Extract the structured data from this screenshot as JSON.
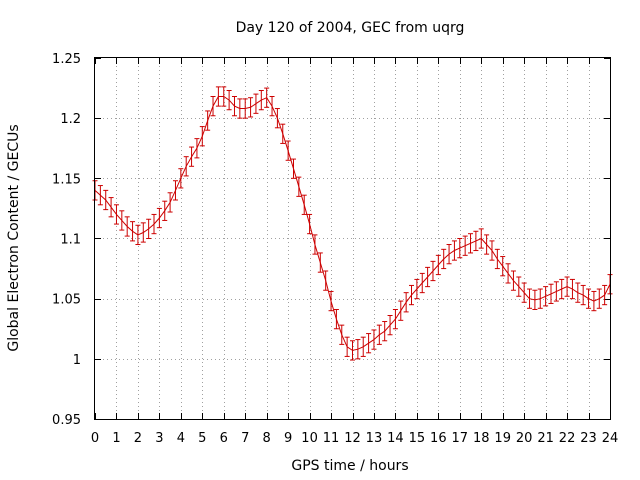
{
  "chart_data": {
    "type": "line",
    "title": "Day 120 of 2004, GEC from uqrg",
    "xlabel": "GPS time / hours",
    "ylabel": "Global Electron Content / GECUs",
    "xlim": [
      0,
      24
    ],
    "ylim": [
      0.95,
      1.25
    ],
    "xticks": [
      "0",
      "1",
      "2",
      "3",
      "4",
      "5",
      "6",
      "7",
      "8",
      "9",
      "10",
      "11",
      "12",
      "13",
      "14",
      "15",
      "16",
      "17",
      "18",
      "19",
      "20",
      "21",
      "22",
      "23",
      "24"
    ],
    "yticks": [
      "0.95",
      "1",
      "1.05",
      "1.1",
      "1.15",
      "1.2",
      "1.25"
    ],
    "grid": true,
    "series_color": "#cc0000",
    "error": 0.008,
    "x": [
      0,
      0.25,
      0.5,
      0.75,
      1,
      1.25,
      1.5,
      1.75,
      2,
      2.25,
      2.5,
      2.75,
      3,
      3.25,
      3.5,
      3.75,
      4,
      4.25,
      4.5,
      4.75,
      5,
      5.25,
      5.5,
      5.75,
      6,
      6.25,
      6.5,
      6.75,
      7,
      7.25,
      7.5,
      7.75,
      8,
      8.25,
      8.5,
      8.75,
      9,
      9.25,
      9.5,
      9.75,
      10,
      10.25,
      10.5,
      10.75,
      11,
      11.25,
      11.5,
      11.75,
      12,
      12.25,
      12.5,
      12.75,
      13,
      13.25,
      13.5,
      13.75,
      14,
      14.25,
      14.5,
      14.75,
      15,
      15.25,
      15.5,
      15.75,
      16,
      16.25,
      16.5,
      16.75,
      17,
      17.25,
      17.5,
      17.75,
      18,
      18.25,
      18.5,
      18.75,
      19,
      19.25,
      19.5,
      19.75,
      20,
      20.25,
      20.5,
      20.75,
      21,
      21.25,
      21.5,
      21.75,
      22,
      22.25,
      22.5,
      22.75,
      23,
      23.25,
      23.5,
      23.75,
      24
    ],
    "y": [
      1.14,
      1.136,
      1.132,
      1.126,
      1.12,
      1.115,
      1.11,
      1.106,
      1.103,
      1.105,
      1.108,
      1.112,
      1.117,
      1.123,
      1.13,
      1.14,
      1.15,
      1.16,
      1.168,
      1.175,
      1.185,
      1.198,
      1.21,
      1.218,
      1.218,
      1.215,
      1.21,
      1.208,
      1.208,
      1.209,
      1.212,
      1.215,
      1.217,
      1.21,
      1.2,
      1.187,
      1.173,
      1.158,
      1.143,
      1.128,
      1.112,
      1.095,
      1.08,
      1.065,
      1.048,
      1.033,
      1.02,
      1.01,
      1.007,
      1.008,
      1.01,
      1.013,
      1.016,
      1.02,
      1.023,
      1.028,
      1.033,
      1.04,
      1.047,
      1.053,
      1.058,
      1.063,
      1.068,
      1.073,
      1.078,
      1.083,
      1.087,
      1.09,
      1.092,
      1.094,
      1.096,
      1.098,
      1.1,
      1.095,
      1.09,
      1.083,
      1.077,
      1.071,
      1.065,
      1.06,
      1.055,
      1.05,
      1.049,
      1.05,
      1.052,
      1.054,
      1.056,
      1.058,
      1.06,
      1.058,
      1.055,
      1.053,
      1.05,
      1.048,
      1.05,
      1.053,
      1.062
    ]
  }
}
